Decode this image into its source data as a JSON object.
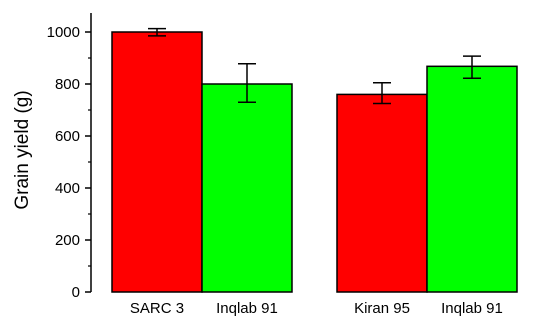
{
  "chart_data": {
    "type": "bar",
    "title": "",
    "xlabel": "",
    "ylabel": "Grain yield (g)",
    "ylim": [
      0,
      1050
    ],
    "yticks": [
      0,
      200,
      400,
      600,
      800,
      1000
    ],
    "grid": false,
    "legend": "none",
    "groups": [
      {
        "bars": [
          {
            "label": "SARC 3",
            "value": 1000,
            "err_low": 985,
            "err_high": 1013,
            "color": "#ff0000"
          },
          {
            "label": "Inqlab 91",
            "value": 800,
            "err_low": 730,
            "err_high": 878,
            "color": "#00ff00"
          }
        ]
      },
      {
        "bars": [
          {
            "label": "Kiran 95",
            "value": 760,
            "err_low": 725,
            "err_high": 805,
            "color": "#ff0000"
          },
          {
            "label": "Inqlab 91",
            "value": 868,
            "err_low": 822,
            "err_high": 907,
            "color": "#00ff00"
          }
        ]
      }
    ]
  }
}
